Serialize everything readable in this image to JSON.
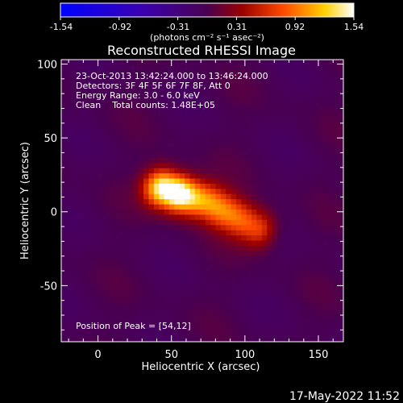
{
  "chart_data": {
    "type": "heatmap",
    "title": "Reconstructed RHESSI Image",
    "xlabel": "Heliocentric X (arcsec)",
    "ylabel": "Heliocentric Y (arcsec)",
    "xlim": [
      -25,
      167
    ],
    "ylim": [
      -88,
      103
    ],
    "x_ticks": [
      0,
      50,
      100,
      150
    ],
    "y_ticks": [
      -50,
      0,
      50,
      100
    ],
    "colorbar": {
      "ticks": [
        "-1.54",
        "-0.92",
        "-0.31",
        "0.31",
        "0.92",
        "1.54"
      ],
      "range": [
        -1.54,
        1.54
      ],
      "unit_label": "(photons cm⁻² s⁻¹ asec⁻²)"
    },
    "annotations": [
      "23-Oct-2013 13:42:24.000 to 13:46:24.000",
      "Detectors: 3F 4F 5F 6F 7F 8F, Att 0",
      "Energy Range: 3.0 - 6.0 keV",
      "Clean    Total counts: 1.48E+05"
    ],
    "peak_label": "Position of Peak = [54,12]",
    "peak": [
      54,
      12
    ],
    "source_ridge": [
      [
        44,
        16
      ],
      [
        75,
        6
      ],
      [
        108,
        -11
      ]
    ],
    "grid": false,
    "legend": "none",
    "colormap": [
      "#0000ff",
      "#6a00a8",
      "#8a0000",
      "#ff5a00",
      "#ffd000",
      "#ffffff"
    ]
  },
  "footer": {
    "timestamp": "17-May-2022 11:52"
  }
}
